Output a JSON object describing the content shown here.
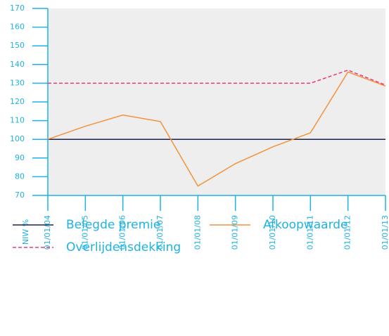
{
  "chart_data": {
    "type": "line",
    "y_label": "NIW %",
    "categories": [
      "01/01/04",
      "01/01/05",
      "01/01/06",
      "01/01/07",
      "01/01/08",
      "01/01/09",
      "01/01/10",
      "01/01/11",
      "01/01/12",
      "01/01/13"
    ],
    "series": [
      {
        "name": "Belegde premie",
        "color": "#1b2350",
        "dash": false,
        "values": [
          100,
          100,
          100,
          100,
          100,
          100,
          100,
          100,
          100,
          100
        ]
      },
      {
        "name": "Afkoopwaarde",
        "color": "#f4923a",
        "dash": false,
        "values": [
          100,
          107,
          113,
          109.5,
          75,
          87,
          96,
          103.5,
          136,
          128.5
        ]
      },
      {
        "name": "Overlijdensdekking",
        "color": "#e5397a",
        "dash": true,
        "values": [
          130,
          130,
          130,
          130,
          130,
          130,
          130,
          130,
          137,
          129
        ]
      }
    ],
    "ylim": [
      70,
      170
    ],
    "yticks": [
      70,
      80,
      90,
      100,
      110,
      120,
      130,
      140,
      150,
      160,
      170
    ],
    "axis_color": "#1fb2e4",
    "background": "#eeeeee"
  }
}
